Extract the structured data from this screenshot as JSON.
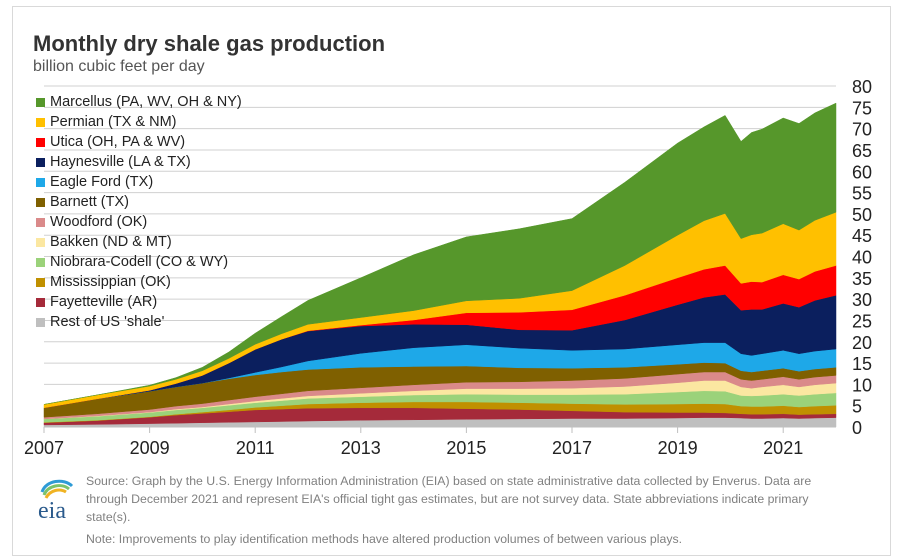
{
  "title": "Monthly dry shale gas production",
  "subtitle": "billion cubic feet per day",
  "source_text": "Source: Graph by the U.S. Energy Information Administration (EIA) based on state administrative data collected by Enverus. Data are through December 2021 and represent EIA's official tight gas estimates, but are not survey data. State abbreviations indicate primary state(s).",
  "note_text": "Note: Improvements to play identification methods have altered production volumes of between various plays.",
  "logo_text": "eia",
  "chart_data": {
    "type": "area",
    "stacked": true,
    "title": "Monthly dry shale gas production",
    "ylabel": "billion cubic feet per day",
    "xlabel": "",
    "ylim": [
      0,
      80
    ],
    "xlim": [
      2007,
      2022
    ],
    "grid": true,
    "legend": "top-left",
    "y_axis_side": "right",
    "x": [
      2007.0,
      2008.0,
      2009.0,
      2009.5,
      2010.0,
      2010.5,
      2011.0,
      2011.5,
      2012.0,
      2013.0,
      2014.0,
      2015.0,
      2016.0,
      2017.0,
      2018.0,
      2019.0,
      2019.5,
      2019.9,
      2020.2,
      2020.4,
      2020.6,
      2021.0,
      2021.3,
      2021.6,
      2022.0
    ],
    "x_ticks": [
      "2007",
      "2009",
      "2011",
      "2013",
      "2015",
      "2017",
      "2019",
      "2021"
    ],
    "x_tick_values": [
      2007,
      2009,
      2011,
      2013,
      2015,
      2017,
      2019,
      2021
    ],
    "y_ticks": [
      "0",
      "5",
      "10",
      "15",
      "20",
      "25",
      "30",
      "35",
      "40",
      "45",
      "50",
      "55",
      "60",
      "65",
      "70",
      "75",
      "80"
    ],
    "series": [
      {
        "name": "Rest of US 'shale'",
        "color": "#bfbfbf",
        "values": [
          0.5,
          0.6,
          0.8,
          0.9,
          1.0,
          1.1,
          1.2,
          1.3,
          1.4,
          1.6,
          1.7,
          1.8,
          1.9,
          2.0,
          2.0,
          2.1,
          2.2,
          2.2,
          2.1,
          2.0,
          2.0,
          2.1,
          2.0,
          2.1,
          2.2
        ]
      },
      {
        "name": "Fayetteville (AR)",
        "color": "#a52a3a",
        "values": [
          0.5,
          0.9,
          1.5,
          1.9,
          2.2,
          2.5,
          2.8,
          2.9,
          3.0,
          2.9,
          2.8,
          2.5,
          2.2,
          1.8,
          1.5,
          1.3,
          1.2,
          1.1,
          1.0,
          1.0,
          1.0,
          1.0,
          0.9,
          0.9,
          0.9
        ]
      },
      {
        "name": "Mississippian (OK)",
        "color": "#c09000",
        "values": [
          0.1,
          0.1,
          0.1,
          0.2,
          0.3,
          0.4,
          0.6,
          0.8,
          1.0,
          1.2,
          1.4,
          1.6,
          1.6,
          1.7,
          1.8,
          2.0,
          2.1,
          2.1,
          1.8,
          1.8,
          1.8,
          1.9,
          1.8,
          1.9,
          2.0
        ]
      },
      {
        "name": "Niobrara-Codell (CO & WY)",
        "color": "#9bd27a",
        "values": [
          0.8,
          0.9,
          1.0,
          1.0,
          1.0,
          1.1,
          1.1,
          1.2,
          1.3,
          1.4,
          1.6,
          1.8,
          1.9,
          2.1,
          2.4,
          2.8,
          3.0,
          3.0,
          2.5,
          2.5,
          2.6,
          2.7,
          2.7,
          2.8,
          2.9
        ]
      },
      {
        "name": "Bakken (ND & MT)",
        "color": "#fbe7a1",
        "values": [
          0.0,
          0.1,
          0.1,
          0.2,
          0.2,
          0.3,
          0.4,
          0.5,
          0.6,
          0.8,
          1.0,
          1.3,
          1.4,
          1.5,
          1.8,
          2.2,
          2.4,
          2.5,
          2.0,
          1.8,
          2.0,
          2.2,
          2.0,
          2.2,
          2.3
        ]
      },
      {
        "name": "Woodford (OK)",
        "color": "#da8a8a",
        "values": [
          0.4,
          0.5,
          0.6,
          0.7,
          0.8,
          0.9,
          1.0,
          1.1,
          1.2,
          1.3,
          1.4,
          1.5,
          1.6,
          1.8,
          1.9,
          2.0,
          2.0,
          2.0,
          1.8,
          1.8,
          1.8,
          1.9,
          1.8,
          1.8,
          1.8
        ]
      },
      {
        "name": "Barnett (TX)",
        "color": "#7f6000",
        "values": [
          2.2,
          3.5,
          4.3,
          4.5,
          4.8,
          5.0,
          5.1,
          5.1,
          5.0,
          4.8,
          4.3,
          3.8,
          3.3,
          2.9,
          2.6,
          2.3,
          2.2,
          2.1,
          2.0,
          2.0,
          2.0,
          2.0,
          1.9,
          1.9,
          1.9
        ]
      },
      {
        "name": "Eagle Ford (TX)",
        "color": "#1ea8e8",
        "values": [
          0.0,
          0.0,
          0.0,
          0.0,
          0.0,
          0.2,
          0.6,
          1.2,
          2.0,
          3.3,
          4.4,
          5.0,
          4.6,
          4.2,
          4.3,
          4.6,
          4.7,
          4.8,
          4.0,
          3.9,
          4.0,
          4.2,
          4.1,
          4.2,
          4.3
        ]
      },
      {
        "name": "Haynesville (LA & TX)",
        "color": "#0b1f5e",
        "values": [
          0.0,
          0.0,
          0.2,
          0.8,
          1.8,
          3.5,
          5.4,
          6.5,
          7.0,
          6.4,
          5.5,
          4.7,
          4.3,
          4.7,
          6.8,
          9.4,
          10.6,
          11.3,
          10.2,
          10.8,
          10.4,
          11.0,
          10.9,
          11.9,
          12.6
        ]
      },
      {
        "name": "Utica (OH, PA & WV)",
        "color": "#ff0000",
        "values": [
          0.0,
          0.0,
          0.0,
          0.0,
          0.0,
          0.0,
          0.0,
          0.0,
          0.1,
          0.2,
          1.0,
          2.8,
          4.1,
          4.8,
          5.8,
          6.3,
          6.6,
          6.8,
          6.3,
          6.5,
          6.4,
          6.7,
          6.6,
          6.8,
          7.0
        ]
      },
      {
        "name": "Permian (TX & NM)",
        "color": "#ffc000",
        "values": [
          0.8,
          0.9,
          1.0,
          1.0,
          1.1,
          1.1,
          1.2,
          1.3,
          1.5,
          1.8,
          2.2,
          2.8,
          3.3,
          4.5,
          7.0,
          10.0,
          11.4,
          12.2,
          10.5,
          11.0,
          11.5,
          12.0,
          11.5,
          12.0,
          12.5
        ]
      },
      {
        "name": "Marcellus (PA, WV, OH & NY)",
        "color": "#56972b",
        "values": [
          0.0,
          0.0,
          0.2,
          0.4,
          0.8,
          1.5,
          2.6,
          4.0,
          5.6,
          9.3,
          13.1,
          15.0,
          16.3,
          16.9,
          19.5,
          21.6,
          22.0,
          23.0,
          22.8,
          24.0,
          24.4,
          24.8,
          25.0,
          25.2,
          25.6
        ]
      }
    ],
    "legend_order": [
      "Marcellus (PA, WV, OH & NY)",
      "Permian (TX & NM)",
      "Utica (OH, PA & WV)",
      "Haynesville (LA & TX)",
      "Eagle Ford (TX)",
      "Barnett (TX)",
      "Woodford (OK)",
      "Bakken (ND & MT)",
      "Niobrara-Codell (CO & WY)",
      "Mississippian (OK)",
      "Fayetteville (AR)",
      "Rest of US 'shale'"
    ]
  }
}
